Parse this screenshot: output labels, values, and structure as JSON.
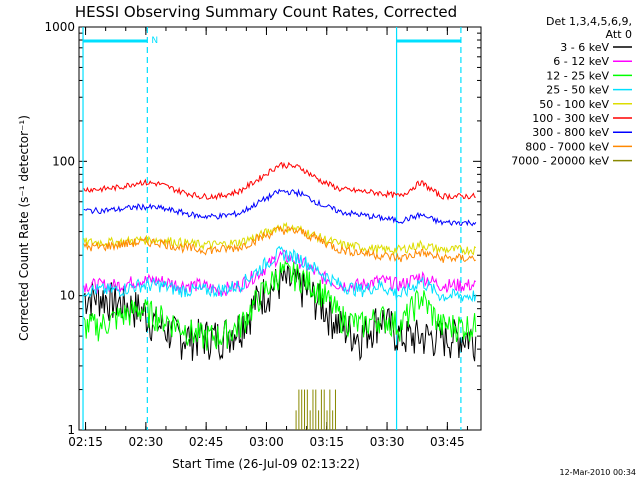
{
  "chart_data": {
    "type": "line",
    "title": "HESSI Observing Summary Count Rates, Corrected",
    "xlabel": "Start Time (26-Jul-09 02:13:22)",
    "ylabel": "Corrected Count Rate (s⁻¹ detector⁻¹)",
    "x_ticks": [
      "02:15",
      "02:30",
      "02:45",
      "03:00",
      "03:15",
      "03:30",
      "03:45"
    ],
    "x_range_minutes_after_0213": [
      0,
      100
    ],
    "y_scale": "log",
    "ylim": [
      1,
      1000
    ],
    "y_ticks": [
      "1",
      "10",
      "100",
      "1000"
    ],
    "legend_title_lines": [
      "Det 1,3,4,5,6,9,",
      "Att 0"
    ],
    "legend_position": "top-right outside plot",
    "timestamp": "12-Mar-2010 00:34",
    "flag_label": "N",
    "cyan_markers": {
      "solid_lines_minutes": [
        1,
        79
      ],
      "dashed_lines_minutes": [
        17,
        95
      ],
      "top_bars_minutes": [
        [
          1,
          17
        ],
        [
          79,
          95
        ]
      ]
    },
    "series": [
      {
        "name": "3 - 6 keV",
        "color": "#000000",
        "values": [
          10,
          10,
          9,
          8,
          6,
          5,
          5,
          5,
          6,
          10,
          13,
          12,
          9,
          6,
          5,
          7,
          5,
          5,
          5,
          5,
          5
        ]
      },
      {
        "name": "6 - 12 keV",
        "color": "#ff00ff",
        "values": [
          12,
          12,
          12,
          13,
          13,
          12,
          12,
          11,
          12,
          15,
          20,
          18,
          14,
          12,
          12,
          13,
          12,
          14,
          12,
          12,
          12
        ]
      },
      {
        "name": "12 - 25 keV",
        "color": "#00ff00",
        "values": [
          6,
          6,
          7,
          8,
          7,
          6,
          5,
          5,
          6,
          10,
          15,
          14,
          11,
          7,
          6,
          7,
          6,
          10,
          6,
          6,
          6
        ]
      },
      {
        "name": "25 - 50 keV",
        "color": "#00e0ff",
        "values": [
          11,
          11,
          11,
          12,
          12,
          11,
          11,
          11,
          12,
          16,
          21,
          19,
          15,
          12,
          11,
          12,
          10,
          13,
          10,
          10,
          10
        ]
      },
      {
        "name": "50 - 100 keV",
        "color": "#dddd00",
        "values": [
          25,
          25,
          25,
          26,
          26,
          25,
          24,
          24,
          25,
          28,
          33,
          31,
          27,
          24,
          23,
          22,
          22,
          24,
          22,
          22,
          22
        ]
      },
      {
        "name": "100 - 300 keV",
        "color": "#ff0000",
        "values": [
          62,
          62,
          64,
          70,
          68,
          60,
          55,
          55,
          60,
          75,
          95,
          90,
          72,
          62,
          60,
          58,
          55,
          70,
          55,
          55,
          55
        ]
      },
      {
        "name": "300 - 800 keV",
        "color": "#0000ff",
        "values": [
          43,
          43,
          44,
          46,
          45,
          42,
          39,
          39,
          41,
          50,
          60,
          58,
          48,
          42,
          40,
          38,
          36,
          40,
          35,
          35,
          35
        ]
      },
      {
        "name": "800 - 7000 keV",
        "color": "#ff8800",
        "values": [
          23,
          23,
          24,
          25,
          25,
          23,
          22,
          22,
          23,
          27,
          31,
          30,
          26,
          22,
          21,
          20,
          19,
          21,
          19,
          19,
          19
        ]
      },
      {
        "name": "7000 - 20000 keV",
        "color": "#888800",
        "values": [
          1,
          1,
          1,
          1,
          1,
          1,
          1,
          1,
          1,
          1,
          1,
          1,
          1,
          1,
          1,
          1,
          1,
          1,
          1,
          1,
          1
        ]
      }
    ],
    "x": [
      0,
      5,
      10,
      15,
      20,
      25,
      30,
      35,
      40,
      45,
      50,
      55,
      60,
      65,
      70,
      75,
      80,
      85,
      90,
      95,
      100
    ]
  }
}
